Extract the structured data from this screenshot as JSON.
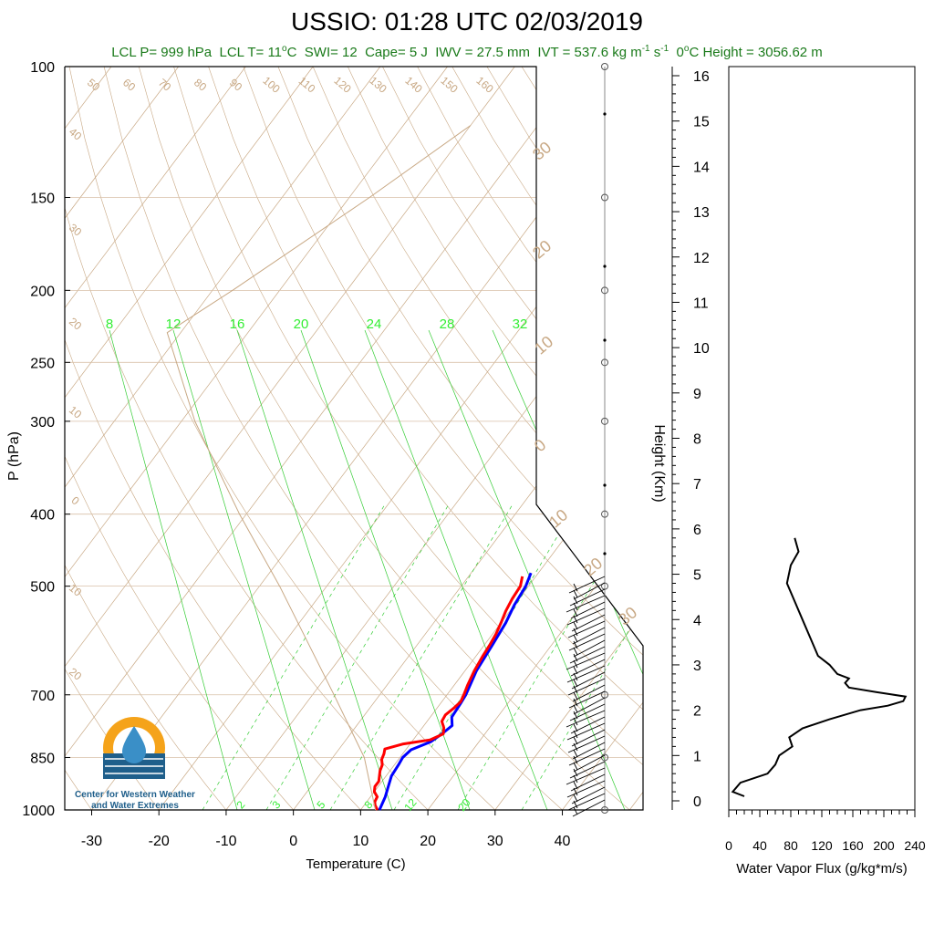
{
  "chart_data": {
    "type": "line",
    "title": "USSIO: 01:28 UTC 02/03/2019",
    "subtitle": {
      "lcl_p": "LCL P= 999 hPa",
      "lcl_t": "LCL T= 11",
      "lcl_t_unit": "C",
      "swi": "SWI= 12",
      "cape": "Cape= 5 J",
      "iwv": "IWV = 27.5 mm",
      "ivt": "IVT = 537.6 kg m",
      "ivt_unit_tail": "s",
      "freezing": "0",
      "freezing_tail": "C Height = 3056.62 m"
    },
    "skewt": {
      "xlabel": "Temperature (C)",
      "ylabel": "P (hPa)",
      "xlim": [
        -34,
        52
      ],
      "ylim_hpa": [
        1000,
        100
      ],
      "xticks": [
        "-30",
        "-20",
        "-10",
        "0",
        "10",
        "20",
        "30",
        "40"
      ],
      "pressure_ticks": [
        "100",
        "150",
        "200",
        "250",
        "300",
        "400",
        "500",
        "700",
        "850",
        "1000"
      ],
      "mixing_ratio_labels_top": [
        "8",
        "12",
        "16",
        "20",
        "24",
        "28",
        "32"
      ],
      "mixing_ratio_labels_bottom": [
        "2",
        "3",
        "5",
        "8",
        "12",
        "20"
      ],
      "isotherm_labels_top": [
        "50",
        "60",
        "70",
        "80",
        "90",
        "100",
        "110",
        "120",
        "130",
        "140",
        "150",
        "160"
      ],
      "isotherm_labels_left": [
        "40",
        "30",
        "20",
        "10",
        "0",
        "10",
        "20"
      ],
      "adiabat_labels_right": [
        "30",
        "20",
        "10",
        "0",
        "10",
        "20",
        "30"
      ],
      "series": [
        {
          "color": "#0000ff",
          "pressure": [
            1000,
            960,
            930,
            900,
            870,
            850,
            830,
            810,
            790,
            770,
            750,
            720,
            700,
            650,
            600,
            560,
            530,
            500,
            480
          ],
          "values": [
            12.8,
            12.2,
            11.5,
            10.8,
            10.6,
            10.4,
            10.8,
            12.8,
            13.6,
            14.2,
            13.2,
            13.0,
            12.8,
            11.7,
            11.2,
            10.7,
            10.0,
            9.6,
            8.9
          ]
        },
        {
          "color": "#ff0000",
          "pressure": [
            1000,
            985,
            975,
            960,
            945,
            930,
            915,
            900,
            885,
            870,
            855,
            840,
            828,
            815,
            805,
            790,
            775,
            760,
            745,
            730,
            715,
            700,
            680,
            650,
            620,
            600,
            580,
            560,
            540,
            520,
            500,
            485
          ],
          "values": [
            12.5,
            11.6,
            11.2,
            11.0,
            10.0,
            9.5,
            9.5,
            9.0,
            8.5,
            8.2,
            7.5,
            7.2,
            6.8,
            9.0,
            12.5,
            13.8,
            13.2,
            12.2,
            12.0,
            12.5,
            12.8,
            12.5,
            12.0,
            11.4,
            11.0,
            10.8,
            10.5,
            10.0,
            9.4,
            9.0,
            8.8,
            8.0
          ]
        },
        {
          "color": "#c8a884",
          "pressure": [
            1000,
            850,
            700,
            500,
            400,
            300,
            228,
            200,
            150,
            120
          ],
          "values": [
            12.2,
            4.7,
            -6.8,
            -27,
            -41,
            -58,
            -72,
            -67,
            -57,
            -50
          ]
        }
      ]
    },
    "height_axis": {
      "label": "Height (Km)",
      "ticks": [
        "0",
        "1",
        "2",
        "3",
        "4",
        "5",
        "6",
        "7",
        "8",
        "9",
        "10",
        "11",
        "12",
        "13",
        "14",
        "15",
        "16"
      ]
    },
    "flux_panel": {
      "xlabel": "Water Vapor Flux (g/kg*m/s)",
      "xticks": [
        "0",
        "40",
        "80",
        "120",
        "160",
        "200",
        "240"
      ],
      "xlim": [
        0,
        240
      ],
      "height_km": [
        0.1,
        0.2,
        0.4,
        0.6,
        0.8,
        1.0,
        1.2,
        1.4,
        1.6,
        1.8,
        2.0,
        2.1,
        2.2,
        2.3,
        2.4,
        2.5,
        2.6,
        2.7,
        2.8,
        3.0,
        3.2,
        3.6,
        4.0,
        4.4,
        4.8,
        5.2,
        5.5,
        5.8
      ],
      "flux": [
        20,
        5,
        15,
        50,
        60,
        65,
        82,
        78,
        95,
        130,
        170,
        205,
        225,
        228,
        190,
        155,
        150,
        155,
        140,
        130,
        115,
        105,
        95,
        85,
        75,
        80,
        90,
        85
      ]
    },
    "logo": {
      "line1": "Center for Western Weather",
      "line2": "and Water Extremes"
    },
    "colors": {
      "temperature": "#0000ff",
      "dewpoint": "#ff0000",
      "isotherm": "#c8a884",
      "mixing_ratio": "#33cc33",
      "title_sub": "#1a7a1a"
    }
  }
}
